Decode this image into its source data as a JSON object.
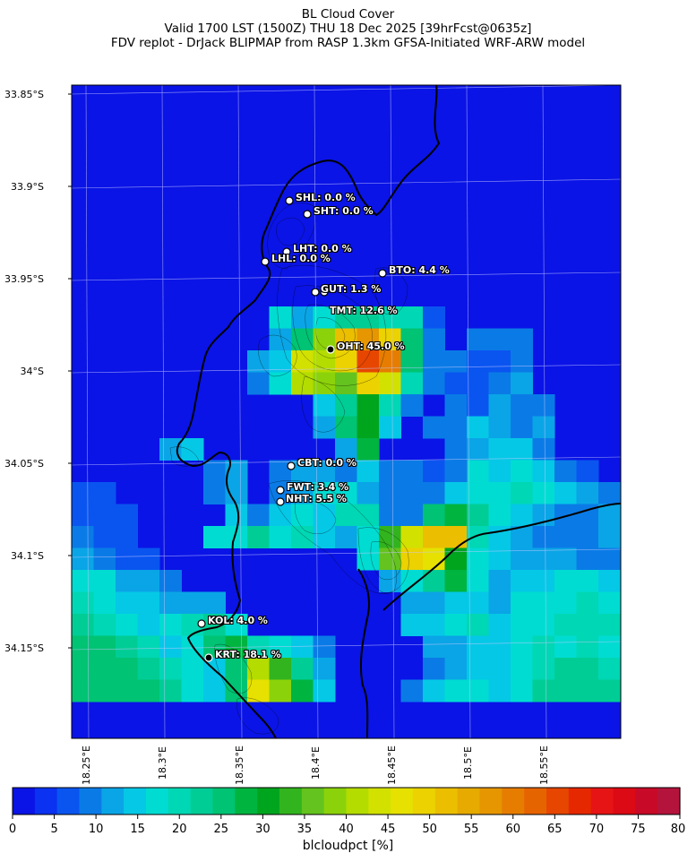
{
  "title": {
    "line1": "BL Cloud Cover",
    "line2": "Valid 1700 LST (1500Z) THU 18 Dec 2025 [39hrFcst@0635z]",
    "line3": "FDV replot - DrJack BLIPMAP from RASP 1.3km GFSA-Initiated WRF-ARW model"
  },
  "map": {
    "lat_labels": [
      "33.85°S",
      "33.9°S",
      "33.95°S",
      "34°S",
      "34.05°S",
      "34.1°S",
      "34.15°S"
    ],
    "lon_labels": [
      "18.25°E",
      "18.3°E",
      "18.35°E",
      "18.4°E",
      "18.45°E",
      "18.5°E",
      "18.55°E"
    ],
    "stations": [
      {
        "name": "SHL: 0.0 %"
      },
      {
        "name": "SHT: 0.0 %"
      },
      {
        "name": "LHT: 0.0 %"
      },
      {
        "name": "LHL: 0.0 %"
      },
      {
        "name": "BTO: 4.4 %"
      },
      {
        "name": "GUT: 1.3 %"
      },
      {
        "name": "TMT: 12.6 %"
      },
      {
        "name": "OHT: 45.0 %"
      },
      {
        "name": "CBT: 0.0 %"
      },
      {
        "name": "FWT: 3.4 %"
      },
      {
        "name": "NHT: 5.5 %"
      },
      {
        "name": "KOL: 4.0 %"
      },
      {
        "name": "KRT: 18.1 %"
      }
    ]
  },
  "colorbar": {
    "title": "blcloudpct [%]",
    "ticks": [
      "0",
      "5",
      "10",
      "15",
      "20",
      "25",
      "30",
      "35",
      "40",
      "45",
      "50",
      "55",
      "60",
      "65",
      "70",
      "75",
      "80"
    ],
    "colors": [
      "#0a14e6",
      "#0a32f0",
      "#0a55f0",
      "#0a7be6",
      "#0aa5e6",
      "#05c8e6",
      "#00dcd2",
      "#00d7b4",
      "#00cd96",
      "#00c373",
      "#00b440",
      "#00a51e",
      "#32b41e",
      "#64c31e",
      "#8cd20a",
      "#b4dc00",
      "#d2e100",
      "#e6e100",
      "#ebd200",
      "#ebbe00",
      "#e6aa00",
      "#e69600",
      "#e67d00",
      "#e66400",
      "#e64600",
      "#e62800",
      "#e61414",
      "#dc0a14",
      "#c80a28",
      "#b4143c"
    ]
  }
}
